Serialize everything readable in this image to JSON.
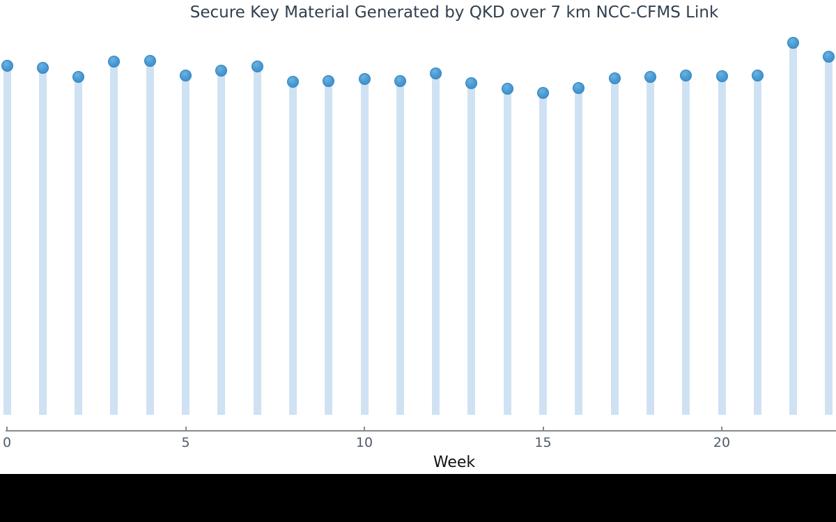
{
  "chart_data": {
    "type": "bar",
    "subtype": "stem-lollipop",
    "title": "Secure Key Material Generated by QKD over 7 km NCC-CFMS Link",
    "xlabel": "Week",
    "ylabel": "",
    "x": [
      0,
      1,
      2,
      3,
      4,
      5,
      6,
      7,
      8,
      9,
      10,
      11,
      12,
      13,
      14,
      15,
      16,
      17,
      18,
      19,
      20,
      21,
      22,
      23
    ],
    "values": [
      93.8,
      93.1,
      90.7,
      94.8,
      95.0,
      91.2,
      92.5,
      93.5,
      89.4,
      89.7,
      90.1,
      89.6,
      91.6,
      89.0,
      87.6,
      86.4,
      87.7,
      90.3,
      90.7,
      91.2,
      90.9,
      91.2,
      100.0,
      96.1
    ],
    "value_scale": "relative units; y-axis not shown in image, max point normalized to 100",
    "x_ticks": [
      0,
      5,
      10,
      15,
      20
    ],
    "x_range_weeks": [
      0,
      23
    ],
    "legend": "none",
    "grid": false,
    "colors": {
      "stem": "#cfe2f3",
      "marker_fill": "#4598d2",
      "marker_edge": "#3182bd",
      "axis_line": "#85898f",
      "tick_label": "#4e5a68",
      "title": "#31404f",
      "xlabel": "#111111",
      "background": "#ffffff",
      "letterbox": "#000000"
    }
  }
}
